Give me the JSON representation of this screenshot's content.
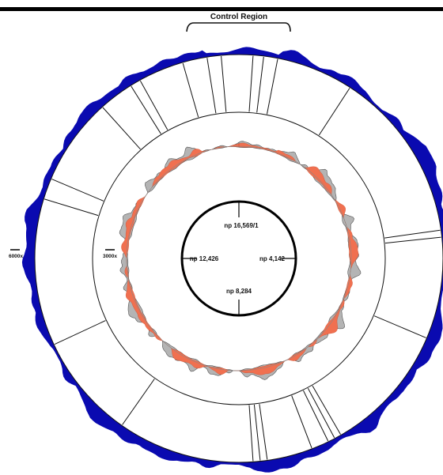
{
  "figure": {
    "control_region_label": "Control Region",
    "scale_outer_label": "6000x",
    "scale_inner_label": "3000x",
    "positions": {
      "top": "np 16,569/1",
      "right": "np 4,142",
      "bottom": "np 8,284",
      "left": "np 12,426"
    }
  },
  "colors": {
    "outer_coverage": "#0a0ab0",
    "inner_coverage_a": "#f07050",
    "inner_coverage_b": "#b4b4b4",
    "line": "#111111"
  },
  "gene_boundaries_deg": [
    -42,
    -16,
    -9,
    -5,
    4,
    7,
    11,
    33,
    82,
    84,
    113,
    150,
    152,
    154,
    159,
    172,
    174,
    176,
    215,
    245,
    287,
    293,
    328,
    331
  ]
}
